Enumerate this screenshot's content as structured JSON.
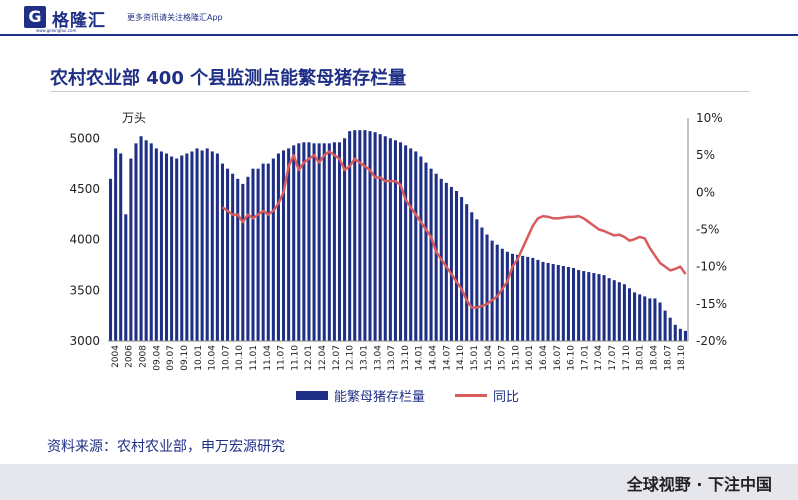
{
  "brand": {
    "logo_letter": "G",
    "name": "格隆汇",
    "url": "www.gelonghui.com",
    "slogan": "更多资讯请关注格隆汇App"
  },
  "title": "农村农业部 400 个县监测点能繁母猪存栏量",
  "source": "资料来源：农村农业部，申万宏源研究",
  "footer": "全球视野 · 下注中国",
  "colors": {
    "bar": "#1f2f86",
    "line": "#d95c5c"
  },
  "chart_data": {
    "type": "bar",
    "title": "农村农业部 400 个县监测点能繁母猪存栏量",
    "y_unit_label": "万头",
    "ylim": [
      3000,
      5200
    ],
    "y_ticks": [
      3000,
      3500,
      4000,
      4500,
      5000
    ],
    "y2lim": [
      -20,
      10
    ],
    "y2_ticks": [
      "-20%",
      "-15%",
      "-10%",
      "-5%",
      "0%",
      "5%",
      "10%"
    ],
    "x_tick_labels": [
      "2004",
      "2006",
      "2008",
      "09.04",
      "09.07",
      "09.10",
      "10.01",
      "10.04",
      "10.07",
      "10.10",
      "11.01",
      "11.04",
      "11.07",
      "11.10",
      "12.01",
      "12.04",
      "12.07",
      "12.10",
      "13.01",
      "13.04",
      "13.07",
      "13.10",
      "14.01",
      "14.04",
      "14.07",
      "14.10",
      "15.01",
      "15.04",
      "15.07",
      "15.10",
      "16.01",
      "16.04",
      "16.07",
      "16.10",
      "17.01",
      "17.04",
      "17.07",
      "17.10",
      "18.01",
      "18.04",
      "18.07",
      "18.10"
    ],
    "series": [
      {
        "name": "能繁母猪存栏量",
        "type": "bar",
        "axis": "left",
        "values": [
          4600,
          4900,
          4850,
          4250,
          4800,
          4950,
          5020,
          4980,
          4950,
          4900,
          4870,
          4850,
          4820,
          4800,
          4830,
          4850,
          4870,
          4900,
          4880,
          4900,
          4870,
          4850,
          4750,
          4700,
          4650,
          4600,
          4550,
          4620,
          4700,
          4700,
          4750,
          4750,
          4800,
          4850,
          4880,
          4900,
          4930,
          4950,
          4960,
          4960,
          4950,
          4950,
          4950,
          4950,
          4960,
          4960,
          5000,
          5070,
          5080,
          5080,
          5080,
          5070,
          5060,
          5040,
          5020,
          5000,
          4980,
          4960,
          4930,
          4900,
          4870,
          4820,
          4760,
          4700,
          4650,
          4600,
          4560,
          4520,
          4480,
          4420,
          4350,
          4270,
          4200,
          4120,
          4050,
          3990,
          3950,
          3910,
          3880,
          3860,
          3850,
          3840,
          3830,
          3820,
          3800,
          3780,
          3770,
          3760,
          3750,
          3740,
          3730,
          3720,
          3700,
          3690,
          3680,
          3670,
          3660,
          3650,
          3620,
          3600,
          3580,
          3560,
          3520,
          3480,
          3460,
          3440,
          3420,
          3420,
          3380,
          3300,
          3230,
          3160,
          3120,
          3100
        ]
      },
      {
        "name": "同比",
        "type": "line",
        "axis": "right",
        "values": [
          null,
          null,
          null,
          null,
          null,
          null,
          null,
          null,
          null,
          null,
          null,
          null,
          null,
          null,
          null,
          null,
          null,
          null,
          null,
          null,
          null,
          null,
          -2.0,
          -2.5,
          -3.0,
          -3.0,
          -4.0,
          -3.0,
          -3.5,
          -3.0,
          -2.5,
          -3.0,
          -2.5,
          -1.5,
          0.0,
          3.5,
          5.0,
          3.0,
          4.0,
          4.5,
          5.0,
          4.0,
          5.0,
          5.5,
          5.0,
          4.5,
          3.0,
          3.5,
          4.5,
          4.0,
          3.5,
          3.0,
          2.0,
          2.0,
          1.5,
          1.5,
          1.5,
          1.0,
          -1.0,
          -2.0,
          -3.0,
          -4.0,
          -5.0,
          -6.0,
          -8.0,
          -9.0,
          -10.0,
          -11.0,
          -12.0,
          -13.0,
          -14.5,
          -15.5,
          -15.5,
          -15.3,
          -15.0,
          -14.5,
          -14.0,
          -13.0,
          -12.0,
          -10.0,
          -9.0,
          -7.5,
          -6.0,
          -4.5,
          -3.5,
          -3.2,
          -3.3,
          -3.5,
          -3.5,
          -3.4,
          -3.3,
          -3.3,
          -3.2,
          -3.5,
          -4.0,
          -4.5,
          -5.0,
          -5.2,
          -5.5,
          -5.8,
          -5.7,
          -6.0,
          -6.5,
          -6.3,
          -6.0,
          -6.2,
          -7.5,
          -8.5,
          -9.5,
          -10.0,
          -10.5,
          -10.3,
          -10.0,
          -11.0
        ]
      }
    ]
  }
}
